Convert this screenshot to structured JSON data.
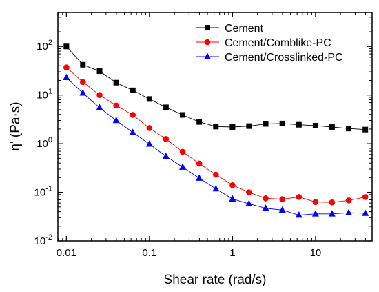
{
  "chart_data": {
    "type": "line",
    "xlabel": "Shear rate (rad/s)",
    "ylabel": "η' (Pa·s)",
    "xscale": "log",
    "yscale": "log",
    "xlim": [
      0.0079,
      48
    ],
    "ylim": [
      0.01,
      500
    ],
    "x_ticks": [
      {
        "value": 0.01,
        "label": "0.01"
      },
      {
        "value": 0.1,
        "label": "0.1"
      },
      {
        "value": 1,
        "label": "1"
      },
      {
        "value": 10,
        "label": "10"
      }
    ],
    "y_ticks": [
      {
        "value": 0.01,
        "base": "10",
        "exp": "-2"
      },
      {
        "value": 0.1,
        "base": "10",
        "exp": "-1"
      },
      {
        "value": 1,
        "base": "10",
        "exp": "0"
      },
      {
        "value": 10,
        "base": "10",
        "exp": "1"
      },
      {
        "value": 100,
        "base": "10",
        "exp": "2"
      }
    ],
    "legend_position": "top-right",
    "x": [
      0.01,
      0.0158,
      0.0251,
      0.0398,
      0.0631,
      0.1,
      0.158,
      0.251,
      0.398,
      0.631,
      1,
      1.58,
      2.51,
      3.98,
      6.31,
      10,
      15.8,
      25.1,
      39.8
    ],
    "series": [
      {
        "name": "Cement",
        "color": "#000000",
        "marker": "square",
        "values": [
          100,
          42,
          31,
          18,
          12.5,
          8.3,
          5.6,
          3.9,
          2.8,
          2.25,
          2.2,
          2.3,
          2.55,
          2.6,
          2.45,
          2.35,
          2.2,
          2.05,
          1.95
        ]
      },
      {
        "name": "Cement/Comblike-PC",
        "color": "#ff0000",
        "marker": "circle",
        "values": [
          37,
          18.5,
          10,
          6.1,
          3.9,
          2.1,
          1.25,
          0.68,
          0.39,
          0.23,
          0.14,
          0.1,
          0.075,
          0.072,
          0.08,
          0.063,
          0.062,
          0.068,
          0.08
        ]
      },
      {
        "name": "Cement/Crosslinked-PC",
        "color": "#0000ff",
        "marker": "triangle",
        "values": [
          23,
          11,
          5.5,
          3,
          1.7,
          0.98,
          0.55,
          0.33,
          0.195,
          0.118,
          0.073,
          0.058,
          0.047,
          0.043,
          0.034,
          0.036,
          0.036,
          0.038,
          0.037
        ]
      }
    ]
  }
}
